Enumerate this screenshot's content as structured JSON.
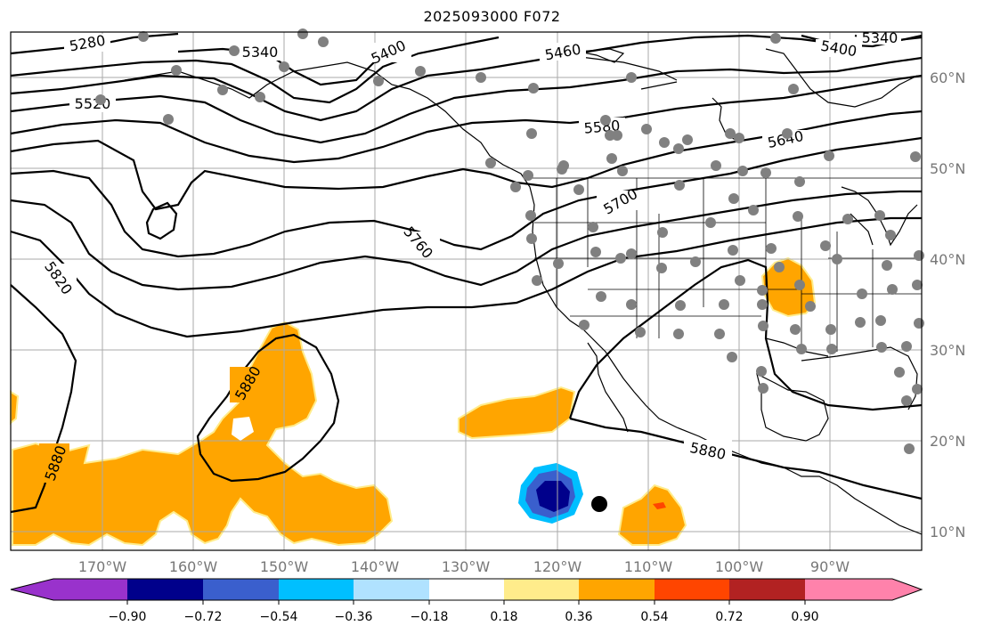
{
  "title": "2025093000 F072",
  "lat_labels": [
    "60°N",
    "50°N",
    "40°N",
    "30°N",
    "20°N",
    "10°N"
  ],
  "lon_labels": [
    "170°W",
    "160°W",
    "150°W",
    "140°W",
    "130°W",
    "120°W",
    "110°W",
    "100°W",
    "90°W"
  ],
  "contour_labels": [
    "5280",
    "5340",
    "5400",
    "5460",
    "5400",
    "5340",
    "5520",
    "5580",
    "5640",
    "5700",
    "5760",
    "5820",
    "5880",
    "5880",
    "5880"
  ],
  "colorbar": {
    "ticks": [
      "−0.90",
      "−0.72",
      "−0.54",
      "−0.36",
      "−0.18",
      "0.18",
      "0.36",
      "0.54",
      "0.72",
      "0.90"
    ],
    "colors": [
      "#9932cc",
      "#00008b",
      "#3a5fcd",
      "#00bfff",
      "#b0e2ff",
      "#ffffff",
      "#ffec8b",
      "#ffa500",
      "#ff4500",
      "#b22222",
      "#ff82ab"
    ]
  },
  "shading_colors": {
    "positive": "#ffa500",
    "positive_edge": "#ffec8b",
    "negative_light": "#00bfff",
    "negative_mid": "#3a5fcd",
    "negative_dark": "#00008b",
    "peak": "#ff4500"
  },
  "station_color": "#808080"
}
